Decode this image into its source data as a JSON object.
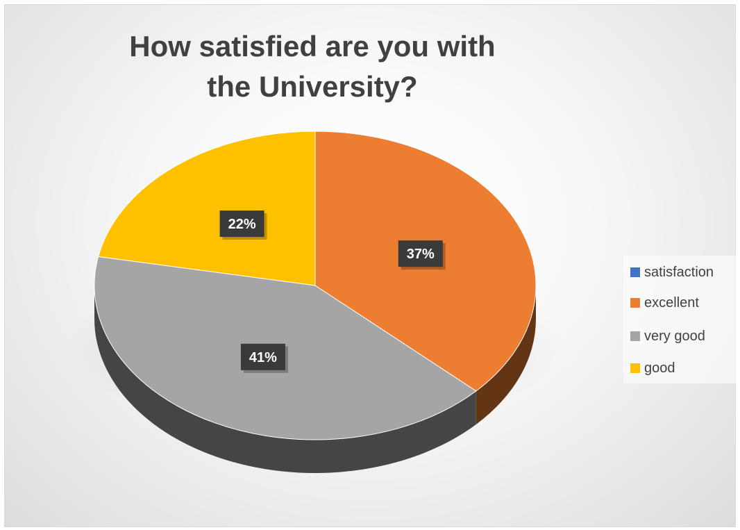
{
  "chart_data": {
    "type": "pie",
    "title": "How satisfied are you with the University?",
    "categories": [
      "satisfaction",
      "excellent",
      "very good",
      "good"
    ],
    "values": [
      0,
      37,
      41,
      22
    ],
    "data_labels": [
      "",
      "37%",
      "41%",
      "22%"
    ],
    "colors": [
      "#4472C4",
      "#ED7D31",
      "#A5A5A5",
      "#FFC000"
    ],
    "legend_position": "right",
    "style": "3d"
  }
}
